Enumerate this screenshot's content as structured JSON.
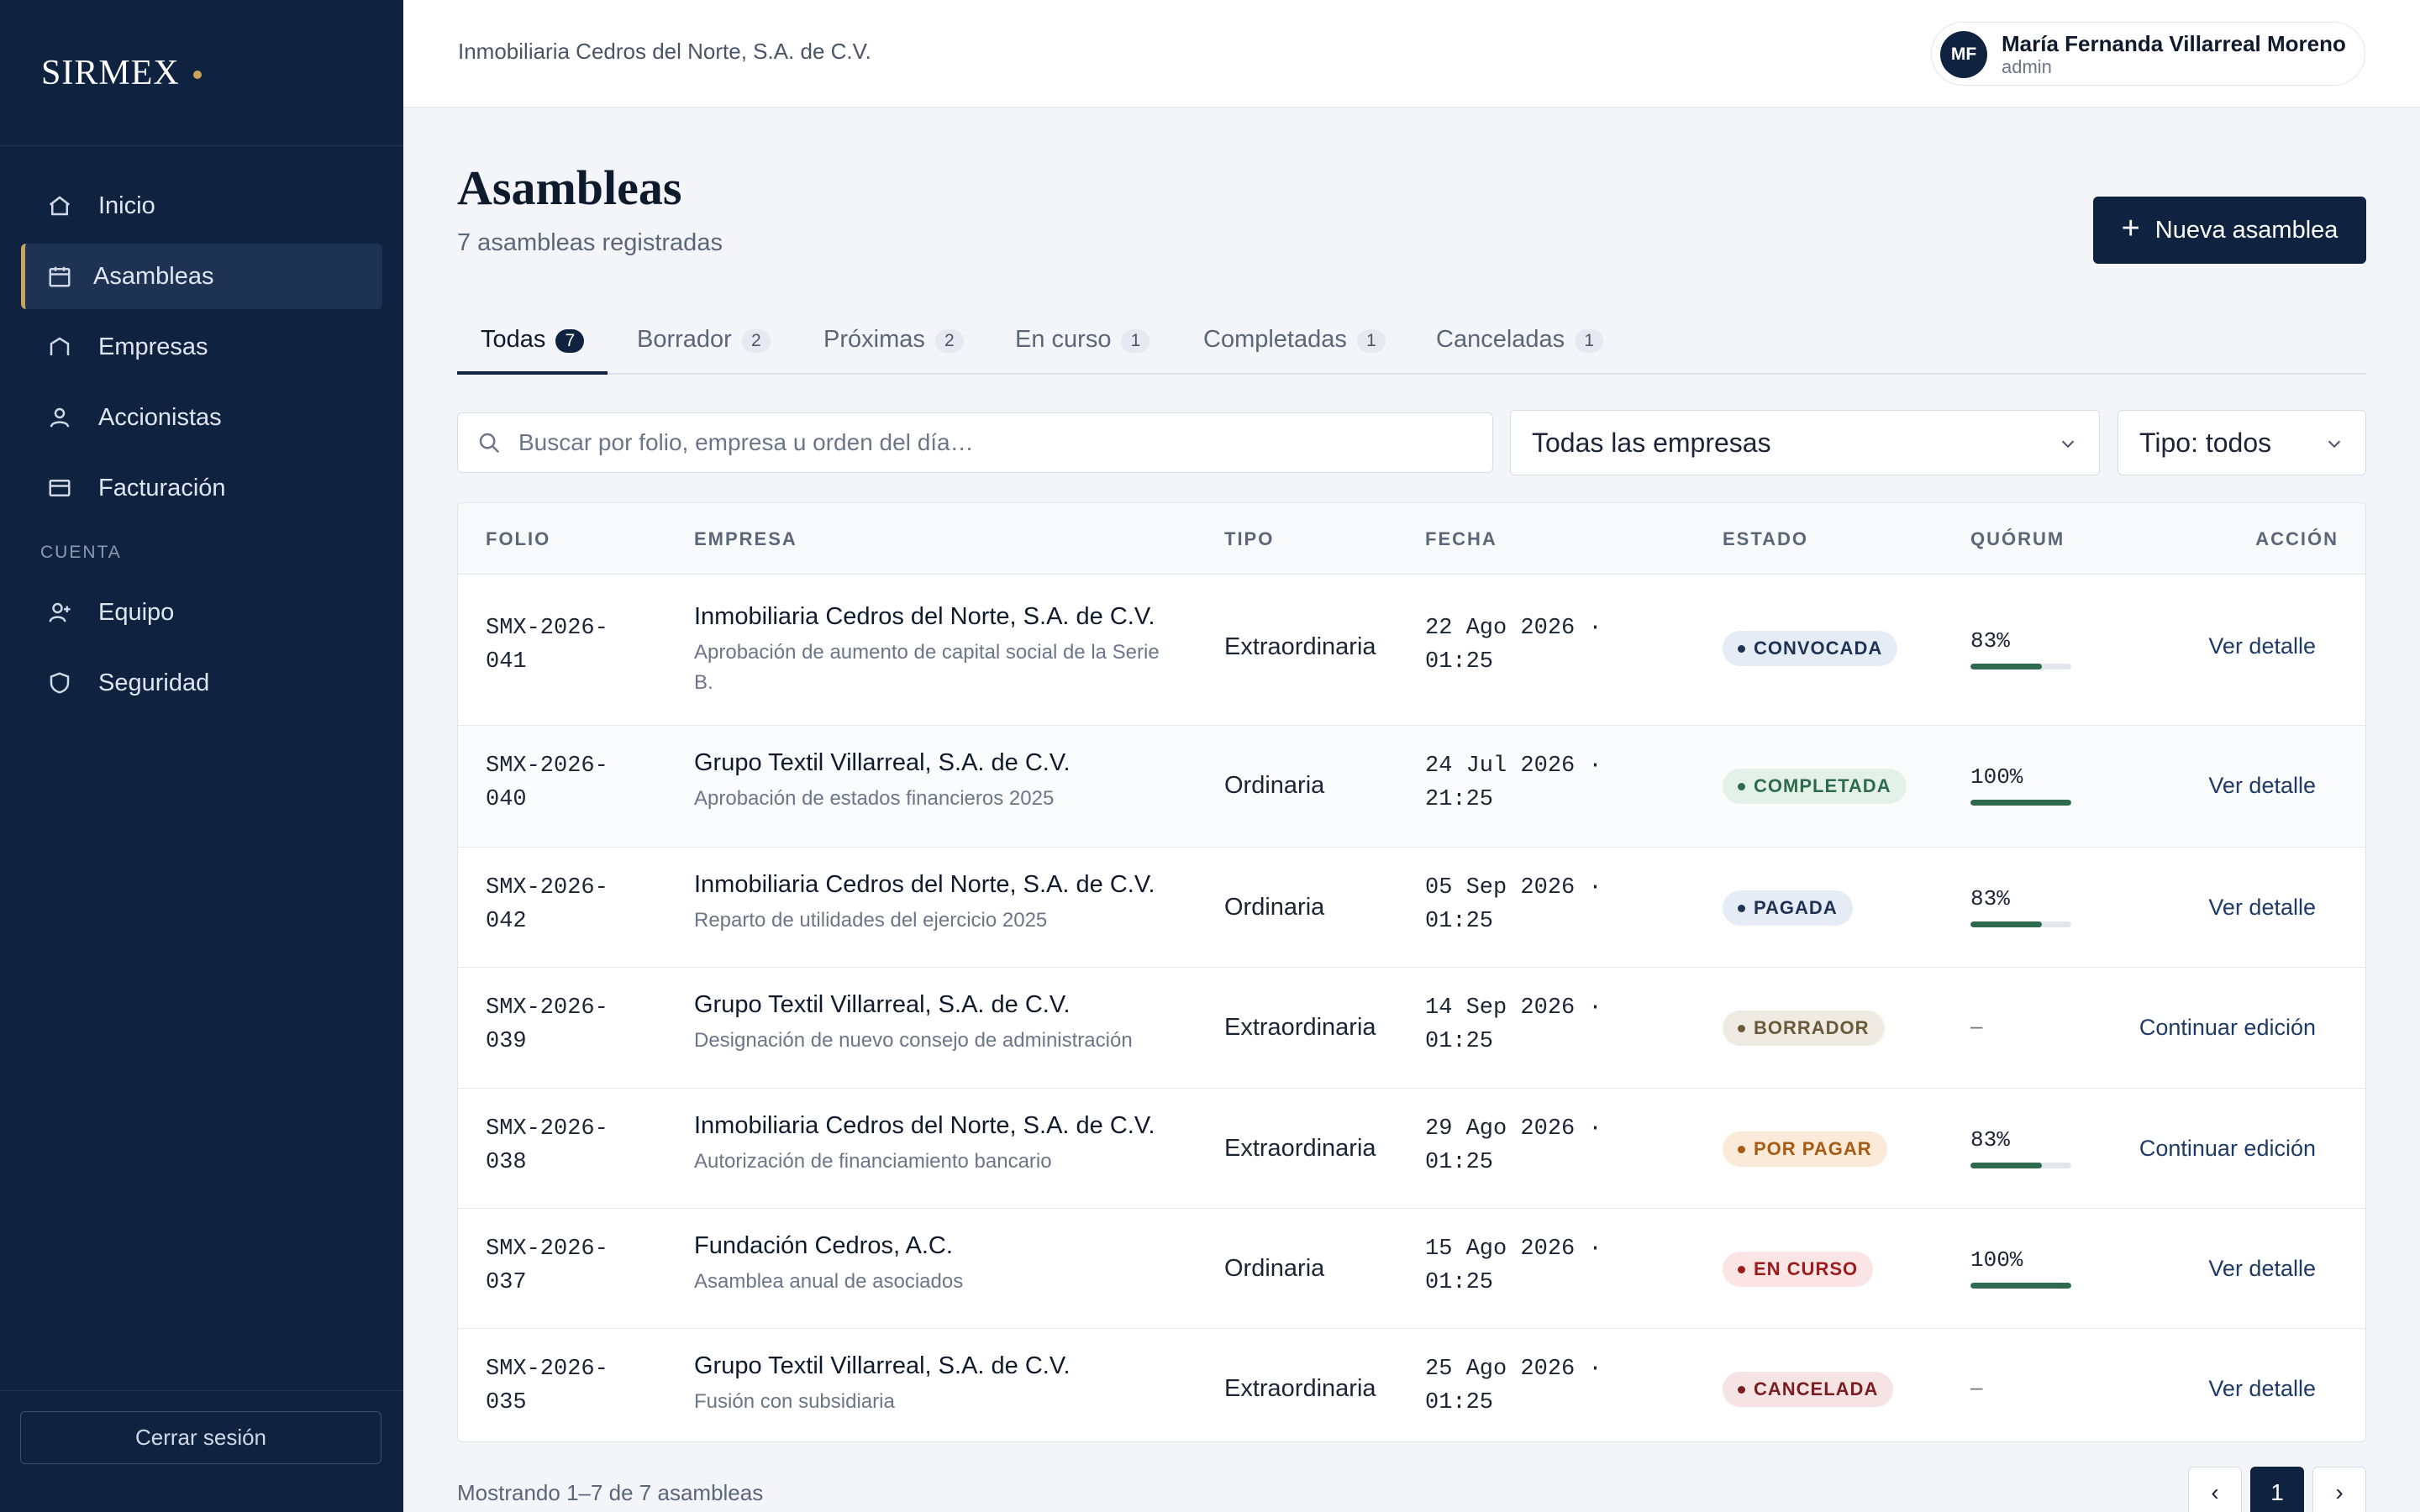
{
  "brand": {
    "name": "SIRMEX"
  },
  "sidebar": {
    "items": [
      {
        "label": "Inicio",
        "icon": "home-icon"
      },
      {
        "label": "Asambleas",
        "icon": "calendar-icon",
        "active": true
      },
      {
        "label": "Empresas",
        "icon": "building-icon"
      },
      {
        "label": "Accionistas",
        "icon": "user-icon"
      },
      {
        "label": "Facturación",
        "icon": "credit-card-icon"
      }
    ],
    "section_label": "CUENTA",
    "account_items": [
      {
        "label": "Equipo",
        "icon": "user-plus-icon"
      },
      {
        "label": "Seguridad",
        "icon": "shield-icon"
      }
    ],
    "logout_label": "Cerrar sesión"
  },
  "header": {
    "company": "Inmobiliaria Cedros del Norte, S.A. de C.V.",
    "user": {
      "initials": "MF",
      "name": "María Fernanda Villarreal Moreno",
      "role": "admin"
    }
  },
  "page": {
    "title": "Asambleas",
    "subtitle": "7 asambleas registradas",
    "new_button": "Nueva asamblea"
  },
  "tabs": [
    {
      "label": "Todas",
      "count": "7",
      "active": true
    },
    {
      "label": "Borrador",
      "count": "2"
    },
    {
      "label": "Próximas",
      "count": "2"
    },
    {
      "label": "En curso",
      "count": "1"
    },
    {
      "label": "Completadas",
      "count": "1"
    },
    {
      "label": "Canceladas",
      "count": "1"
    }
  ],
  "filters": {
    "search_placeholder": "Buscar por folio, empresa u orden del día…",
    "company_select": "Todas las empresas",
    "type_select": "Tipo: todos"
  },
  "table": {
    "headers": [
      "FOLIO",
      "EMPRESA",
      "TIPO",
      "FECHA",
      "ESTADO",
      "QUÓRUM",
      "ACCIÓN"
    ],
    "rows": [
      {
        "folio_a": "SMX-2026-",
        "folio_b": "041",
        "empresa": "Inmobiliaria Cedros del Norte, S.A. de C.V.",
        "descripcion": "Aprobación de aumento de capital social de la Serie B.",
        "tipo": "Extraordinaria",
        "fecha_a": "22 Ago 2026 ·",
        "fecha_b": "01:25",
        "estado": "CONVOCADA",
        "quorum": "83%",
        "quorum_pct": 83,
        "accion": "Ver detalle"
      },
      {
        "folio_a": "SMX-2026-",
        "folio_b": "040",
        "empresa": "Grupo Textil Villarreal, S.A. de C.V.",
        "descripcion": "Aprobación de estados financieros 2025",
        "tipo": "Ordinaria",
        "fecha_a": "24 Jul 2026 ·",
        "fecha_b": "21:25",
        "estado": "COMPLETADA",
        "quorum": "100%",
        "quorum_pct": 100,
        "accion": "Ver detalle"
      },
      {
        "folio_a": "SMX-2026-",
        "folio_b": "042",
        "empresa": "Inmobiliaria Cedros del Norte, S.A. de C.V.",
        "descripcion": "Reparto de utilidades del ejercicio 2025",
        "tipo": "Ordinaria",
        "fecha_a": "05 Sep 2026 ·",
        "fecha_b": "01:25",
        "estado": "PAGADA",
        "quorum": "83%",
        "quorum_pct": 83,
        "accion": "Ver detalle"
      },
      {
        "folio_a": "SMX-2026-",
        "folio_b": "039",
        "empresa": "Grupo Textil Villarreal, S.A. de C.V.",
        "descripcion": "Designación de nuevo consejo de administración",
        "tipo": "Extraordinaria",
        "fecha_a": "14 Sep 2026 ·",
        "fecha_b": "01:25",
        "estado": "BORRADOR",
        "quorum": "–",
        "quorum_pct": null,
        "accion": "Continuar edición"
      },
      {
        "folio_a": "SMX-2026-",
        "folio_b": "038",
        "empresa": "Inmobiliaria Cedros del Norte, S.A. de C.V.",
        "descripcion": "Autorización de financiamiento bancario",
        "tipo": "Extraordinaria",
        "fecha_a": "29 Ago 2026 ·",
        "fecha_b": "01:25",
        "estado": "POR PAGAR",
        "quorum": "83%",
        "quorum_pct": 83,
        "accion": "Continuar edición"
      },
      {
        "folio_a": "SMX-2026-",
        "folio_b": "037",
        "empresa": "Fundación Cedros, A.C.",
        "descripcion": "Asamblea anual de asociados",
        "tipo": "Ordinaria",
        "fecha_a": "15 Ago 2026 ·",
        "fecha_b": "01:25",
        "estado": "EN CURSO",
        "quorum": "100%",
        "quorum_pct": 100,
        "accion": "Ver detalle"
      },
      {
        "folio_a": "SMX-2026-",
        "folio_b": "035",
        "empresa": "Grupo Textil Villarreal, S.A. de C.V.",
        "descripcion": "Fusión con subsidiaria",
        "tipo": "Extraordinaria",
        "fecha_a": "25 Ago 2026 ·",
        "fecha_b": "01:25",
        "estado": "CANCELADA",
        "quorum": "–",
        "quorum_pct": null,
        "accion": "Ver detalle"
      }
    ]
  },
  "status_colors": {
    "CONVOCADA": {
      "bg": "#e6ecf5",
      "fg": "#1e3354"
    },
    "COMPLETADA": {
      "bg": "#e4f1e9",
      "fg": "#2e6b4e"
    },
    "PAGADA": {
      "bg": "#e6ecf5",
      "fg": "#1e3354"
    },
    "BORRADOR": {
      "bg": "#efebe2",
      "fg": "#6b5a3a"
    },
    "POR PAGAR": {
      "bg": "#fbead7",
      "fg": "#a65a12"
    },
    "EN CURSO": {
      "bg": "#fbe4e4",
      "fg": "#9b1c1c"
    },
    "CANCELADA": {
      "bg": "#f6e3e3",
      "fg": "#7a1f1f"
    }
  },
  "footer": {
    "showing": "Mostrando 1–7 de 7 asambleas",
    "pages": {
      "prev": "‹",
      "current": "1",
      "next": "›"
    }
  },
  "colors": {
    "sidebar": "#0f2340",
    "accent": "#c9a45c",
    "primary": "#0f2340"
  }
}
